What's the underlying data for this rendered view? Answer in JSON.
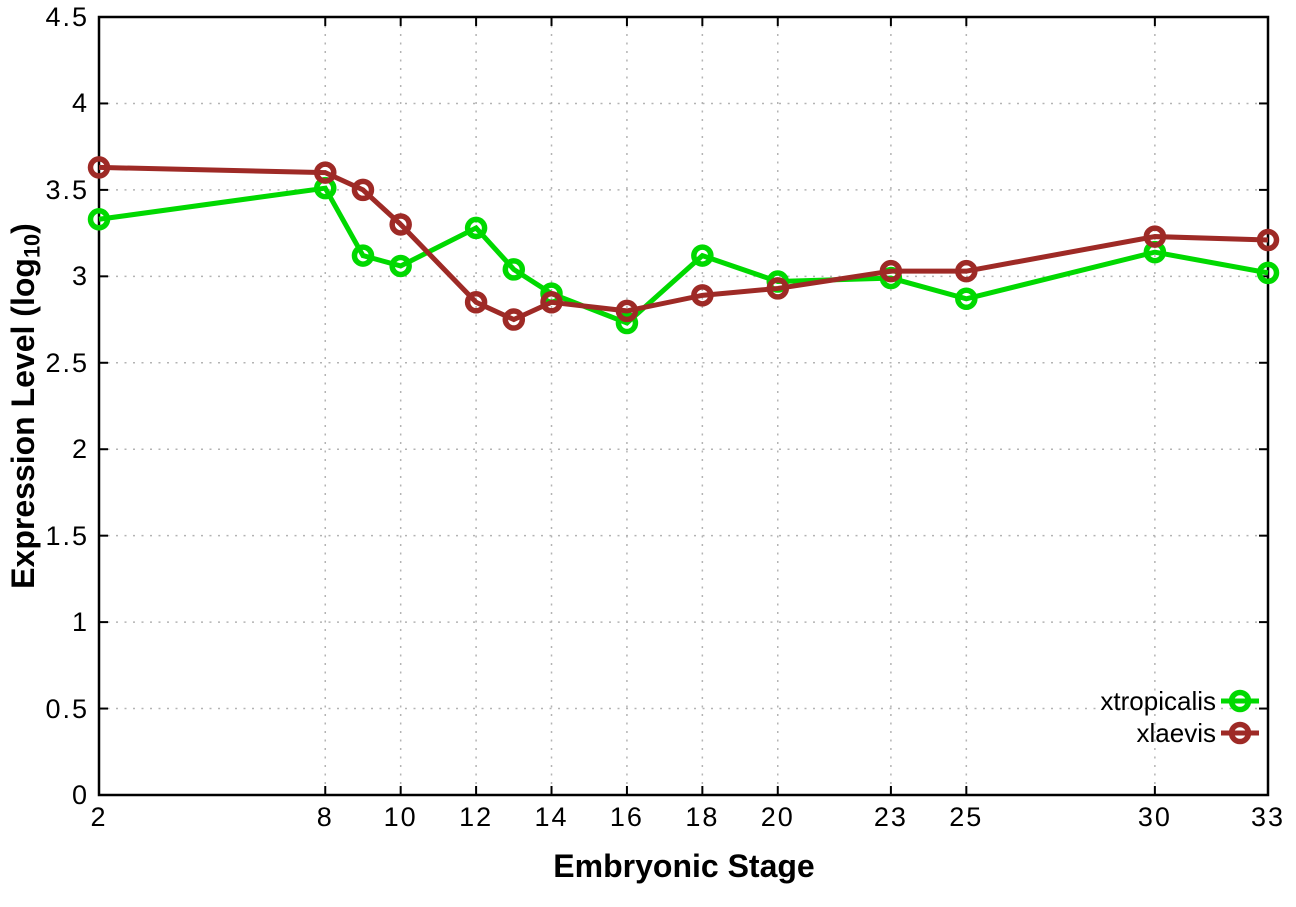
{
  "figure": {
    "background": "#ffffff"
  },
  "chart_data": {
    "type": "line",
    "title": "",
    "xlabel": "Embryonic Stage",
    "ylabel": "Expression Level (log10)",
    "ylabel_display": {
      "prefix": "Expression Level (log",
      "sub": "10",
      "suffix": ")"
    },
    "x": [
      2,
      8,
      9,
      10,
      12,
      13,
      14,
      16,
      18,
      20,
      23,
      25,
      30,
      33
    ],
    "series": [
      {
        "name": "xtropicalis",
        "color": "#00d900",
        "values": [
          3.33,
          3.51,
          3.12,
          3.06,
          3.28,
          3.04,
          2.9,
          2.73,
          3.12,
          2.97,
          2.99,
          2.87,
          3.14,
          3.02
        ]
      },
      {
        "name": "xlaevis",
        "color": "#9e2a26",
        "values": [
          3.63,
          3.6,
          3.5,
          3.3,
          2.85,
          2.75,
          2.85,
          2.8,
          2.89,
          2.93,
          3.03,
          3.03,
          3.23,
          3.21
        ]
      }
    ],
    "xlim": [
      2,
      33
    ],
    "ylim": [
      0,
      4.5
    ],
    "xticks": [
      2,
      8,
      10,
      12,
      14,
      16,
      18,
      20,
      23,
      25,
      30,
      33
    ],
    "yticks": [
      0,
      0.5,
      1,
      1.5,
      2,
      2.5,
      3,
      3.5,
      4,
      4.5
    ],
    "grid": true,
    "grid_color": "#b3b3b3",
    "axis_color": "#000000",
    "marker": "open-circle",
    "legend_position": "bottom-right"
  }
}
